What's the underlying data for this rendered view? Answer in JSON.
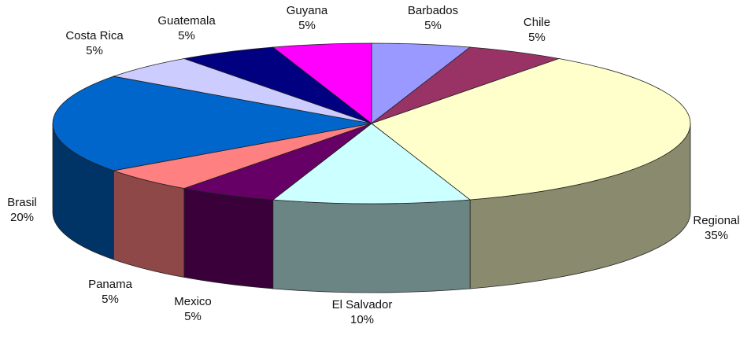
{
  "chart_data": {
    "type": "pie",
    "three_d": true,
    "title": "",
    "legend": "none",
    "slices": [
      {
        "label": "Barbados",
        "pct_label": "5%",
        "value": 5,
        "color": "#9999ff",
        "side_color": "#5c5c99"
      },
      {
        "label": "Chile",
        "pct_label": "5%",
        "value": 5,
        "color": "#993366",
        "side_color": "#5c1f3d"
      },
      {
        "label": "Regional",
        "pct_label": "35%",
        "value": 35,
        "color": "#ffffcc",
        "side_color": "#8a8a6e"
      },
      {
        "label": "El Salvador",
        "pct_label": "10%",
        "value": 10,
        "color": "#ccffff",
        "side_color": "#6b8585"
      },
      {
        "label": "Mexico",
        "pct_label": "5%",
        "value": 5,
        "color": "#660066",
        "side_color": "#3a003a"
      },
      {
        "label": "Panama",
        "pct_label": "5%",
        "value": 5,
        "color": "#ff8080",
        "side_color": "#8f4848"
      },
      {
        "label": "Brasil",
        "pct_label": "20%",
        "value": 20,
        "color": "#0066cc",
        "side_color": "#003366"
      },
      {
        "label": "Costa Rica",
        "pct_label": "5%",
        "value": 5,
        "color": "#ccccff",
        "side_color": "#7a7a99"
      },
      {
        "label": "Guatemala",
        "pct_label": "5%",
        "value": 5,
        "color": "#000080",
        "side_color": "#00004d"
      },
      {
        "label": "Guyana",
        "pct_label": "5%",
        "value": 5,
        "color": "#ff00ff",
        "side_color": "#990099"
      }
    ]
  }
}
